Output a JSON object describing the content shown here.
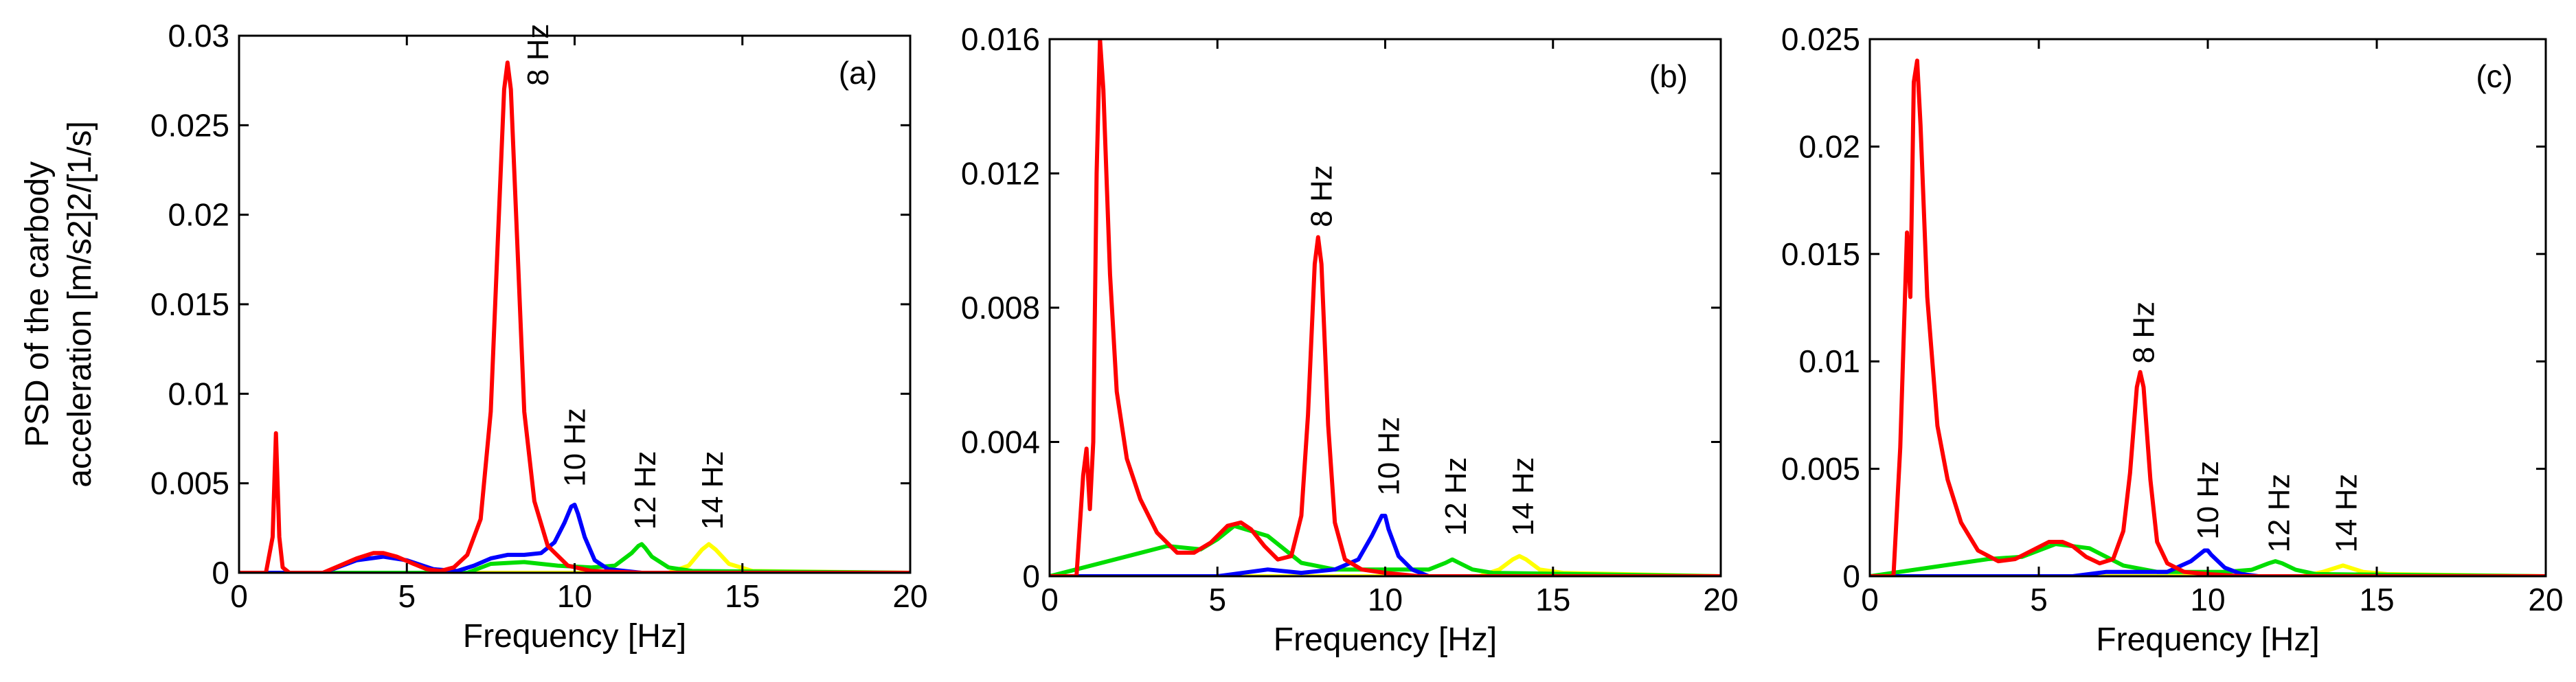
{
  "chart_data": [
    {
      "type": "line",
      "panel_label": "(a)",
      "xlabel": "Frequency [Hz]",
      "ylabel_lines": [
        "PSD of the carbody",
        "acceleration [m/s2]2/[1/s]"
      ],
      "xlim": [
        0,
        20
      ],
      "ylim": [
        0,
        0.03
      ],
      "xticks": [
        0,
        5,
        10,
        15,
        20
      ],
      "yticks": [
        0,
        0.005,
        0.01,
        0.015,
        0.02,
        0.025,
        0.03
      ],
      "ytick_labels": [
        "0",
        "0.005",
        "0.01",
        "0.015",
        "0.02",
        "0.025",
        "0.03"
      ],
      "series": [
        {
          "name": "8 Hz",
          "color": "#ff0000",
          "x": [
            0,
            0.8,
            1.0,
            1.1,
            1.2,
            1.3,
            1.5,
            2.5,
            3.0,
            3.5,
            4.0,
            4.3,
            4.7,
            5.2,
            5.6,
            6.0,
            6.4,
            6.8,
            7.2,
            7.5,
            7.7,
            7.9,
            8.0,
            8.1,
            8.3,
            8.5,
            8.8,
            9.2,
            9.8,
            10.5,
            12,
            20
          ],
          "y": [
            0,
            0,
            0.002,
            0.0078,
            0.002,
            0.0003,
            0,
            0,
            0.0004,
            0.0008,
            0.0011,
            0.0011,
            0.0009,
            0.0005,
            0.0002,
            0.0001,
            0.0003,
            0.001,
            0.003,
            0.009,
            0.018,
            0.027,
            0.0285,
            0.027,
            0.018,
            0.009,
            0.004,
            0.0015,
            0.0004,
            0.0001,
            0,
            0
          ]
        },
        {
          "name": "10 Hz",
          "color": "#0000ff",
          "x": [
            0,
            2.5,
            3.5,
            4.3,
            5.0,
            5.8,
            6.5,
            7.0,
            7.5,
            8.0,
            8.5,
            9.0,
            9.4,
            9.7,
            9.9,
            10.0,
            10.1,
            10.3,
            10.6,
            11.0,
            12,
            20
          ],
          "y": [
            0,
            0,
            0.0007,
            0.0009,
            0.0007,
            0.0002,
            0.0001,
            0.0004,
            0.0008,
            0.001,
            0.001,
            0.0011,
            0.0017,
            0.0028,
            0.0037,
            0.0038,
            0.0033,
            0.002,
            0.0007,
            0.0002,
            0,
            0
          ]
        },
        {
          "name": "12 Hz",
          "color": "#00dd00",
          "x": [
            0,
            6.8,
            7.5,
            8.5,
            9.5,
            10.5,
            11.2,
            11.7,
            11.9,
            12.0,
            12.1,
            12.3,
            12.8,
            13.5,
            20
          ],
          "y": [
            0,
            0,
            0.0005,
            0.0006,
            0.0004,
            0.0003,
            0.0004,
            0.0011,
            0.0015,
            0.0016,
            0.0014,
            0.0009,
            0.0003,
            0.0001,
            0
          ]
        },
        {
          "name": "14 Hz",
          "color": "#ffff00",
          "x": [
            0,
            12.8,
            13.4,
            13.8,
            14.0,
            14.2,
            14.6,
            15.3,
            20
          ],
          "y": [
            0,
            0,
            0.0004,
            0.0013,
            0.0016,
            0.0013,
            0.0005,
            0.0001,
            0
          ]
        }
      ],
      "annotations": [
        {
          "text": "8 Hz",
          "x": 8.9,
          "y": 0.0272,
          "rotate": -90
        },
        {
          "text": "10 Hz",
          "x": 10.0,
          "y": 0.0048,
          "rotate": -90
        },
        {
          "text": "12 Hz",
          "x": 12.1,
          "y": 0.0024,
          "rotate": -90
        },
        {
          "text": "14 Hz",
          "x": 14.1,
          "y": 0.0024,
          "rotate": -90
        }
      ]
    },
    {
      "type": "line",
      "panel_label": "(b)",
      "xlabel": "Frequency [Hz]",
      "xlim": [
        0,
        20
      ],
      "ylim": [
        0,
        0.016
      ],
      "xticks": [
        0,
        5,
        10,
        15,
        20
      ],
      "yticks": [
        0,
        0.004,
        0.008,
        0.012,
        0.016
      ],
      "ytick_labels": [
        "0",
        "0.004",
        "0.008",
        "0.012",
        "0.016"
      ],
      "series": [
        {
          "name": "8 Hz",
          "color": "#ff0000",
          "x": [
            0,
            0.8,
            1.0,
            1.1,
            1.2,
            1.3,
            1.4,
            1.5,
            1.6,
            1.8,
            2.0,
            2.3,
            2.7,
            3.2,
            3.8,
            4.3,
            4.8,
            5.3,
            5.7,
            6.0,
            6.4,
            6.8,
            7.2,
            7.5,
            7.7,
            7.9,
            8.0,
            8.1,
            8.3,
            8.5,
            8.8,
            9.3,
            10,
            11,
            20
          ],
          "y": [
            0,
            0,
            0.003,
            0.0038,
            0.002,
            0.004,
            0.012,
            0.016,
            0.0145,
            0.009,
            0.0055,
            0.0035,
            0.0023,
            0.0013,
            0.0007,
            0.0007,
            0.001,
            0.0015,
            0.0016,
            0.0014,
            0.0009,
            0.0005,
            0.0006,
            0.0018,
            0.0048,
            0.0093,
            0.0101,
            0.0093,
            0.0045,
            0.0016,
            0.0005,
            0.0002,
            0.0001,
            0,
            0
          ]
        },
        {
          "name": "10 Hz",
          "color": "#0000ff",
          "x": [
            0,
            5.0,
            6.5,
            7.5,
            8.5,
            9.2,
            9.6,
            9.9,
            10.0,
            10.1,
            10.4,
            10.8,
            11.3,
            20
          ],
          "y": [
            0,
            0,
            0.0002,
            0.0001,
            0.0002,
            0.0005,
            0.0012,
            0.0018,
            0.0018,
            0.0014,
            0.0006,
            0.0002,
            0,
            0
          ]
        },
        {
          "name": "12 Hz",
          "color": "#00dd00",
          "x": [
            0,
            3.5,
            4.5,
            5.0,
            5.5,
            6.5,
            7.5,
            8.5,
            9.5,
            10.5,
            11.3,
            11.8,
            12.0,
            12.2,
            12.6,
            13.2,
            20
          ],
          "y": [
            0,
            0.0009,
            0.0008,
            0.0011,
            0.0015,
            0.0012,
            0.0004,
            0.0002,
            0.0002,
            0.0002,
            0.0002,
            0.0004,
            0.0005,
            0.0004,
            0.0002,
            0.0001,
            0
          ]
        },
        {
          "name": "14 Hz",
          "color": "#ffff00",
          "x": [
            0,
            12.8,
            13.4,
            13.8,
            14.0,
            14.2,
            14.6,
            15.3,
            20
          ],
          "y": [
            0,
            0,
            0.0002,
            0.0005,
            0.0006,
            0.0005,
            0.0002,
            0.0001,
            0
          ]
        }
      ],
      "annotations": [
        {
          "text": "8 Hz",
          "x": 8.1,
          "y": 0.0104,
          "rotate": -90
        },
        {
          "text": "10 Hz",
          "x": 10.1,
          "y": 0.0024,
          "rotate": -90
        },
        {
          "text": "12 Hz",
          "x": 12.1,
          "y": 0.0012,
          "rotate": -90
        },
        {
          "text": "14 Hz",
          "x": 14.1,
          "y": 0.0012,
          "rotate": -90
        }
      ]
    },
    {
      "type": "line",
      "panel_label": "(c)",
      "xlabel": "Frequency [Hz]",
      "xlim": [
        0,
        20
      ],
      "ylim": [
        0,
        0.025
      ],
      "xticks": [
        0,
        5,
        10,
        15,
        20
      ],
      "yticks": [
        0,
        0.005,
        0.01,
        0.015,
        0.02,
        0.025
      ],
      "ytick_labels": [
        "0",
        "0.005",
        "0.01",
        "0.015",
        "0.02",
        "0.025"
      ],
      "series": [
        {
          "name": "8 Hz",
          "color": "#ff0000",
          "x": [
            0,
            0.7,
            0.9,
            1.1,
            1.2,
            1.3,
            1.4,
            1.5,
            1.7,
            2.0,
            2.3,
            2.7,
            3.2,
            3.8,
            4.3,
            4.8,
            5.3,
            5.7,
            6.0,
            6.4,
            6.8,
            7.2,
            7.5,
            7.7,
            7.9,
            8.0,
            8.1,
            8.3,
            8.5,
            8.8,
            9.3,
            10,
            11,
            20
          ],
          "y": [
            0,
            0,
            0.006,
            0.016,
            0.013,
            0.023,
            0.024,
            0.021,
            0.013,
            0.007,
            0.0045,
            0.0025,
            0.0012,
            0.0007,
            0.0008,
            0.0012,
            0.0016,
            0.0016,
            0.0014,
            0.0009,
            0.0006,
            0.0008,
            0.0021,
            0.0048,
            0.0088,
            0.0095,
            0.0088,
            0.0045,
            0.0016,
            0.0006,
            0.0002,
            0.0001,
            0,
            0
          ]
        },
        {
          "name": "10 Hz",
          "color": "#0000ff",
          "x": [
            0,
            6.0,
            7.0,
            8.0,
            8.8,
            9.5,
            9.9,
            10.0,
            10.1,
            10.5,
            11.0,
            11.5,
            20
          ],
          "y": [
            0,
            0,
            0.0002,
            0.0002,
            0.0002,
            0.0007,
            0.0012,
            0.0012,
            0.001,
            0.0004,
            0.0001,
            0,
            0
          ]
        },
        {
          "name": "12 Hz",
          "color": "#00dd00",
          "x": [
            0,
            3.5,
            4.5,
            5.5,
            6.5,
            7.5,
            8.5,
            9.5,
            10.5,
            11.3,
            11.8,
            12.0,
            12.2,
            12.6,
            13.2,
            20
          ],
          "y": [
            0,
            0.0008,
            0.0009,
            0.0015,
            0.0013,
            0.0005,
            0.0002,
            0.0002,
            0.0002,
            0.0003,
            0.0006,
            0.0007,
            0.0006,
            0.0003,
            0.0001,
            0
          ]
        },
        {
          "name": "14 Hz",
          "color": "#ffff00",
          "x": [
            0,
            12.8,
            13.4,
            13.8,
            14.0,
            14.2,
            14.6,
            15.3,
            20
          ],
          "y": [
            0,
            0,
            0.0002,
            0.0004,
            0.0005,
            0.0004,
            0.0002,
            0.0001,
            0
          ]
        }
      ],
      "annotations": [
        {
          "text": "8 Hz",
          "x": 8.1,
          "y": 0.0099,
          "rotate": -90
        },
        {
          "text": "10 Hz",
          "x": 10.0,
          "y": 0.0017,
          "rotate": -90
        },
        {
          "text": "12 Hz",
          "x": 12.1,
          "y": 0.0011,
          "rotate": -90
        },
        {
          "text": "14 Hz",
          "x": 14.1,
          "y": 0.0011,
          "rotate": -90
        }
      ]
    }
  ]
}
